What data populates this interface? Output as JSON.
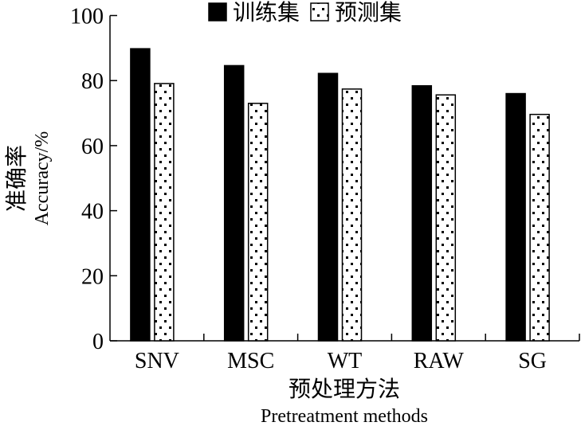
{
  "chart_data": {
    "type": "bar",
    "categories": [
      "SNV",
      "MSC",
      "WT",
      "RAW",
      "SG"
    ],
    "series": [
      {
        "name": "训练集",
        "values": [
          89.8,
          84.6,
          82.2,
          78.4,
          76.0
        ],
        "fill": "solid",
        "color": "#000000"
      },
      {
        "name": "预测集",
        "values": [
          79.1,
          73.0,
          77.4,
          75.6,
          69.6
        ],
        "fill": "dotted",
        "color": "#000000"
      }
    ],
    "xlabel": "预处理方法",
    "xlabel_en": "Pretreatment methods",
    "ylabel": "准确率",
    "ylabel_en": "Accuracy/%",
    "ylim": [
      0,
      100
    ],
    "yticks": [
      0,
      20,
      40,
      60,
      80,
      100
    ],
    "legend_position": "top",
    "grid": false
  }
}
